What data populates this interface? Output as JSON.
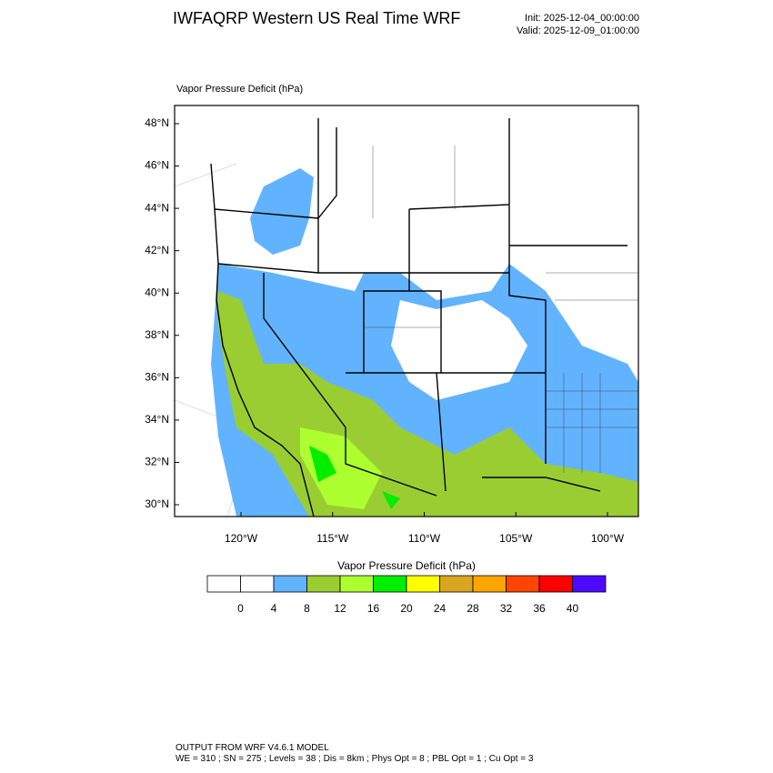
{
  "header": {
    "title": "IWFAQRP Western US Real Time WRF",
    "init": "Init: 2025-12-04_00:00:00",
    "valid": "Valid: 2025-12-09_01:00:00"
  },
  "map": {
    "field_label": "Vapor Pressure Deficit   (hPa)",
    "lat_labels": [
      "48°N",
      "46°N",
      "44°N",
      "42°N",
      "40°N",
      "38°N",
      "36°N",
      "34°N",
      "32°N",
      "30°N"
    ],
    "lon_labels": [
      "120°W",
      "115°W",
      "110°W",
      "105°W",
      "100°W"
    ]
  },
  "colorbar": {
    "title": "Vapor Pressure Deficit  (hPa)",
    "levels": [
      0,
      4,
      8,
      12,
      16,
      20,
      24,
      28,
      32,
      36,
      40
    ],
    "colors": [
      "#ffffff",
      "#ffffff",
      "#62b3ff",
      "#9acd32",
      "#adff2f",
      "#00ee00",
      "#ffff00",
      "#daa520",
      "#ffa500",
      "#ff4500",
      "#ff0000",
      "#4b0aff"
    ]
  },
  "footer": {
    "line1": "OUTPUT FROM WRF V4.6.1 MODEL",
    "line2": "WE = 310 ; SN = 275 ; Levels = 38 ; Dis = 8km ; Phys Opt = 8 ; PBL Opt = 1 ; Cu Opt = 3"
  }
}
